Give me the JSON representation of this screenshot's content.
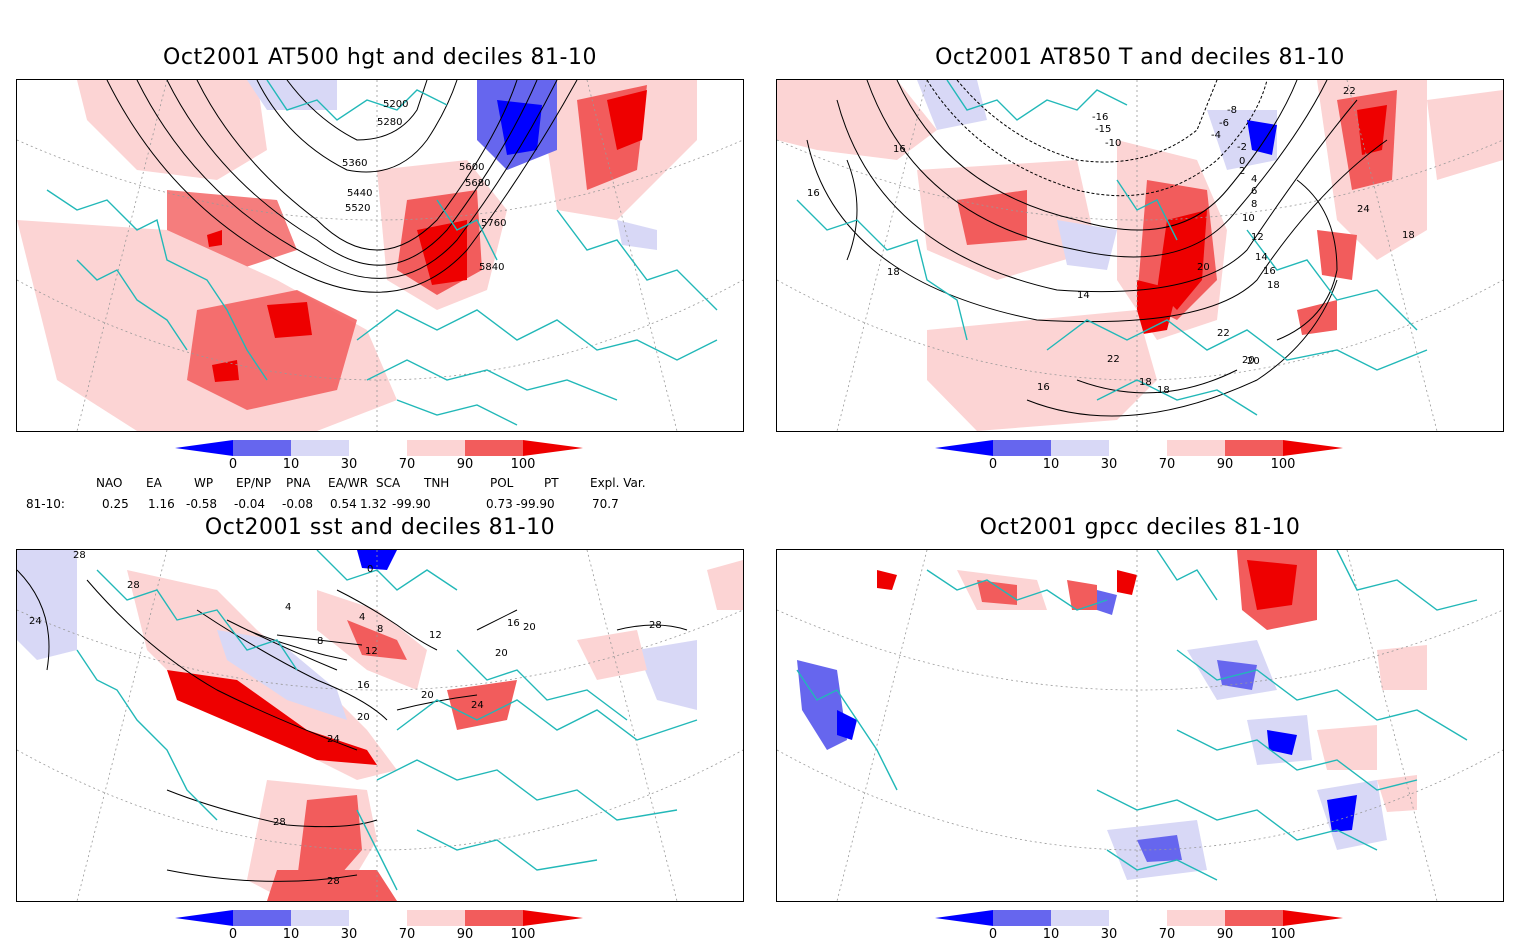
{
  "panels": [
    {
      "title": "Oct2001 AT500 hgt and deciles 81-10",
      "contour_labels": [
        "5200",
        "5280",
        "5360",
        "5440",
        "5520",
        "5600",
        "5680",
        "5760",
        "5840"
      ]
    },
    {
      "title": "Oct2001 AT850 T and deciles 81-10",
      "contour_labels": [
        "-16",
        "-15",
        "-10",
        "-8",
        "-6",
        "-4",
        "-2",
        "0",
        "2",
        "4",
        "6",
        "8",
        "10",
        "12",
        "14",
        "16",
        "18",
        "20",
        "22",
        "24",
        "18",
        "16",
        "14",
        "16",
        "18",
        "20",
        "22",
        "18",
        "16",
        "22",
        "20",
        "18"
      ]
    },
    {
      "title": "Oct2001 sst and deciles 81-10",
      "contour_labels": [
        "28",
        "28",
        "24",
        "0",
        "4",
        "4",
        "8",
        "8",
        "12",
        "12",
        "16",
        "20",
        "20",
        "24",
        "24",
        "28",
        "28",
        "28",
        "20",
        "16",
        "20"
      ]
    },
    {
      "title": "Oct2001 gpcc deciles 81-10",
      "contour_labels": []
    }
  ],
  "colorbar": {
    "ticks": [
      "0",
      "10",
      "30",
      "70",
      "90",
      "100"
    ],
    "colors": [
      "#0000ff",
      "#6666ee",
      "#d8d8f6",
      "#ffffff",
      "#fcd4d4",
      "#f25c5c",
      "#ee0000"
    ]
  },
  "indices": {
    "headers": [
      "NAO",
      "EA",
      "WP",
      "EP/NP",
      "PNA",
      "EA/WR",
      "SCA",
      "TNH",
      "POL",
      "PT",
      "Expl. Var."
    ],
    "row_label": "81-10:",
    "values": [
      "0.25",
      "1.16",
      "-0.58",
      "-0.04",
      "-0.08",
      "0.54",
      "1.32",
      "-99.90",
      "0.73",
      "-99.90",
      "70.7"
    ]
  },
  "map_colors": {
    "coastline": "#22b8b8",
    "grid": "#999999",
    "contour": "#000000"
  }
}
